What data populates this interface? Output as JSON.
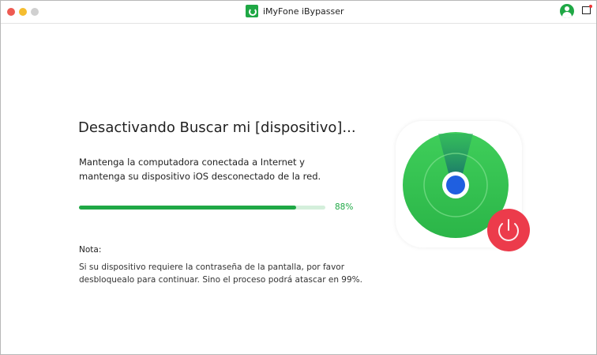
{
  "window": {
    "title": "iMyFone iBypasser"
  },
  "main": {
    "heading": "Desactivando Buscar mi [dispositivo]...",
    "description": "Mantenga la computadora conectada a Internet y mantenga su dispositivo iOS desconectado de la red.",
    "progress": {
      "value": 88,
      "label": "88%"
    },
    "note_label": "Nota:",
    "note_text": "Si su dispositivo requiere la contraseña de la pantalla, por favor desbloquealo para continuar. Sino el proceso podrá atascar en 99%."
  },
  "colors": {
    "accent": "#1fa845",
    "power": "#ec3b4b",
    "findmy_green": "#3fce5a",
    "dot_blue": "#1f5fe0"
  }
}
